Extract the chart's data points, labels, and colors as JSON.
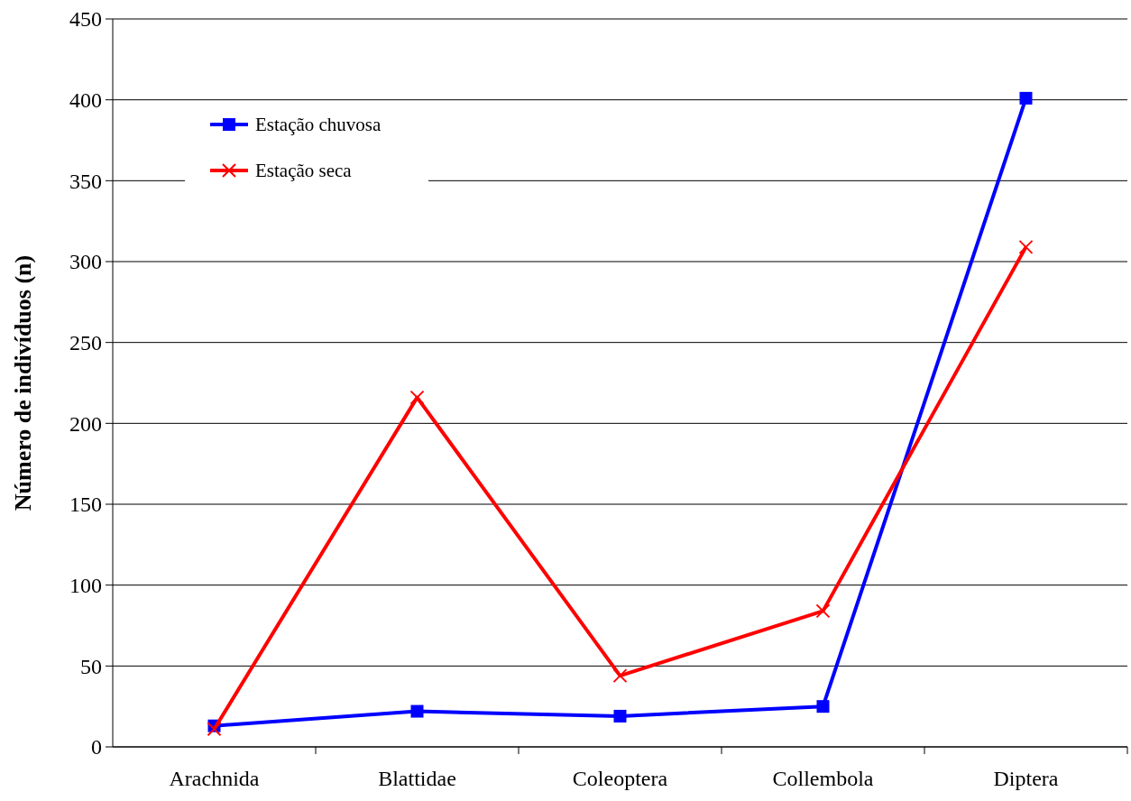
{
  "chart_data": {
    "type": "line",
    "ylabel": "Número de indivíduos (n)",
    "categories": [
      "Arachnida",
      "Blattidae",
      "Coleoptera",
      "Collembola",
      "Diptera"
    ],
    "series": [
      {
        "name": "Estação chuvosa",
        "color": "#0000ff",
        "marker": "square",
        "values": [
          13,
          22,
          19,
          25,
          401
        ]
      },
      {
        "name": "Estação seca",
        "color": "#ff0000",
        "marker": "cross",
        "values": [
          11,
          216,
          44,
          84,
          309
        ]
      }
    ],
    "ylim": [
      0,
      450
    ],
    "yticks": [
      0,
      50,
      100,
      150,
      200,
      250,
      300,
      350,
      400,
      450
    ],
    "grid": "y",
    "legend": "top left",
    "line_style": "solid"
  }
}
